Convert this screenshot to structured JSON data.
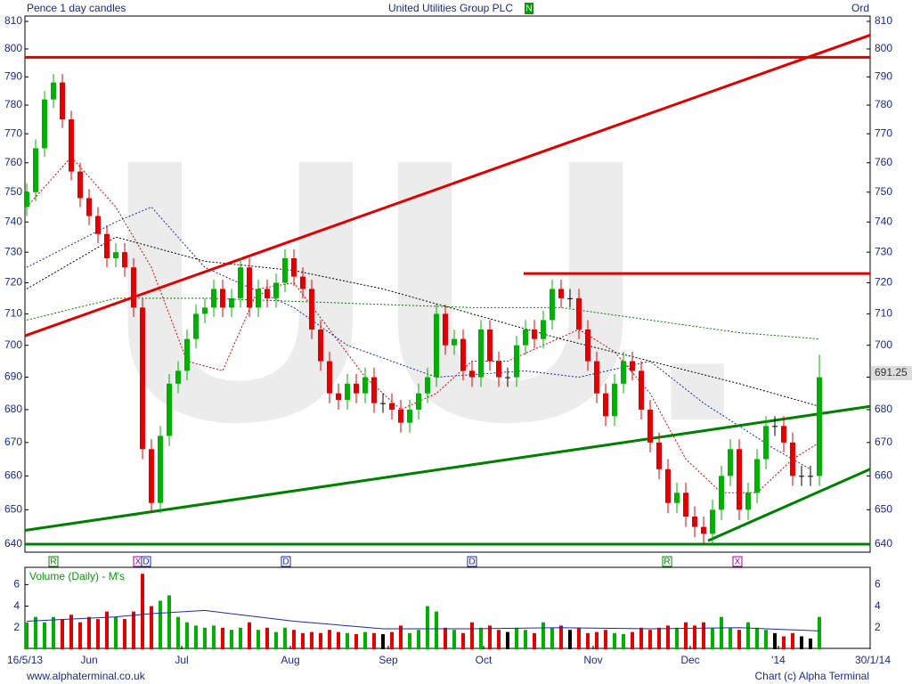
{
  "chart_data": {
    "type": "candlestick",
    "title": "United Utilities Group PLC",
    "subtitle": "Pence 1 day candles",
    "share_class": "Ord",
    "exchange_badge": "N",
    "watermark": "UU.",
    "footer_left": "www.alphaterminal.co.uk",
    "footer_right": "Chart (c) Alpha Terminal",
    "log_scale": true,
    "up_color": "#00b000",
    "down_color": "#e00000",
    "open": [
      745,
      750,
      765,
      782,
      788,
      775,
      757,
      748,
      742,
      736,
      728,
      730,
      725,
      712,
      668,
      652,
      672,
      688,
      692,
      702,
      710,
      712,
      718,
      712,
      715,
      725,
      712,
      718,
      715,
      720,
      728,
      722,
      718,
      705,
      695,
      685,
      683,
      688,
      685,
      690,
      682,
      682,
      680,
      676,
      680,
      685,
      690,
      710,
      700,
      702,
      692,
      690,
      705,
      695,
      690,
      690,
      700,
      705,
      702,
      708,
      718,
      715,
      715,
      705,
      695,
      685,
      678,
      688,
      695,
      692,
      680,
      670,
      662,
      652,
      655,
      648,
      645,
      643,
      650,
      660,
      668,
      650,
      655,
      665,
      675,
      675,
      670,
      660,
      660,
      660
    ],
    "high": [
      753,
      768,
      785,
      791,
      791,
      778,
      760,
      751,
      745,
      739,
      733,
      733,
      728,
      715,
      671,
      675,
      691,
      695,
      705,
      713,
      715,
      721,
      721,
      718,
      728,
      728,
      721,
      721,
      723,
      731,
      731,
      725,
      721,
      708,
      698,
      688,
      691,
      691,
      693,
      693,
      685,
      685,
      683,
      683,
      688,
      693,
      713,
      713,
      705,
      705,
      695,
      708,
      708,
      698,
      693,
      703,
      708,
      708,
      711,
      721,
      721,
      718,
      718,
      708,
      698,
      688,
      691,
      698,
      698,
      695,
      683,
      673,
      665,
      658,
      658,
      651,
      648,
      653,
      663,
      671,
      671,
      658,
      668,
      678,
      678,
      678,
      673,
      663,
      663,
      697
    ],
    "low": [
      742,
      747,
      762,
      779,
      772,
      754,
      745,
      739,
      733,
      725,
      725,
      722,
      709,
      665,
      649,
      649,
      669,
      685,
      689,
      699,
      707,
      709,
      709,
      709,
      712,
      709,
      709,
      712,
      712,
      717,
      719,
      715,
      702,
      692,
      682,
      680,
      680,
      682,
      682,
      679,
      679,
      677,
      673,
      673,
      677,
      682,
      687,
      697,
      697,
      689,
      687,
      687,
      692,
      687,
      687,
      687,
      697,
      699,
      699,
      705,
      712,
      712,
      702,
      692,
      682,
      675,
      675,
      685,
      689,
      677,
      667,
      659,
      649,
      649,
      645,
      642,
      640,
      640,
      647,
      657,
      647,
      647,
      652,
      662,
      672,
      667,
      657,
      657,
      657,
      657
    ],
    "close": [
      750,
      765,
      782,
      788,
      775,
      757,
      748,
      742,
      736,
      728,
      730,
      725,
      712,
      668,
      652,
      672,
      688,
      692,
      702,
      710,
      712,
      718,
      712,
      715,
      725,
      712,
      718,
      715,
      720,
      728,
      722,
      718,
      705,
      695,
      685,
      683,
      688,
      685,
      690,
      682,
      682,
      680,
      676,
      680,
      685,
      690,
      710,
      700,
      702,
      692,
      690,
      705,
      695,
      690,
      690,
      700,
      705,
      702,
      708,
      718,
      715,
      715,
      705,
      695,
      685,
      678,
      688,
      695,
      692,
      680,
      670,
      662,
      652,
      655,
      648,
      645,
      643,
      650,
      660,
      668,
      650,
      655,
      665,
      675,
      675,
      670,
      660,
      660,
      660,
      690
    ],
    "volume_label": "Volume (Daily) - M's",
    "volume": [
      2.5,
      3,
      2.5,
      3,
      2.8,
      3.2,
      2.5,
      3,
      2.8,
      3.5,
      3,
      2.8,
      3.5,
      7,
      4,
      4.5,
      5,
      3,
      2.5,
      2.2,
      2,
      2.2,
      2,
      1.8,
      2,
      2.5,
      1.8,
      2,
      1.6,
      2,
      1.8,
      1.5,
      1.6,
      1.5,
      1.8,
      1.6,
      1.5,
      1.4,
      1.6,
      1.5,
      1.4,
      1.6,
      2.2,
      1.5,
      1.8,
      4,
      3.5,
      2,
      1.8,
      1.5,
      2.5,
      2,
      2.2,
      1.8,
      1.6,
      2,
      1.8,
      1.5,
      2.5,
      2,
      2.2,
      1.8,
      2,
      1.5,
      1.6,
      1.8,
      1.5,
      1.4,
      1.6,
      2,
      1.8,
      2,
      2.2,
      2,
      2.5,
      2.2,
      2.5,
      2,
      3,
      2,
      1.8,
      2.5,
      2,
      1.8,
      1.5,
      1.2,
      1.5,
      1.2,
      1,
      3
    ],
    "volume_ma": {
      "color": "#1a2aaa",
      "x": [
        0,
        10,
        14,
        20,
        30,
        40,
        50,
        60,
        70,
        80,
        89
      ],
      "values": [
        2.6,
        3,
        3.3,
        3.6,
        2.6,
        1.9,
        1.9,
        2,
        1.9,
        2,
        1.7
      ]
    },
    "xlim": [
      -0.2,
      94.7
    ],
    "xticks": [
      {
        "value": -0.2,
        "label": "16/5/13"
      },
      {
        "value": 7,
        "label": "Jun"
      },
      {
        "value": 17.4,
        "label": "Jul"
      },
      {
        "value": 29.6,
        "label": "Aug"
      },
      {
        "value": 40.6,
        "label": "Sep"
      },
      {
        "value": 51.3,
        "label": "Oct"
      },
      {
        "value": 63.6,
        "label": "Nov"
      },
      {
        "value": 74.5,
        "label": "Dec"
      },
      {
        "value": 84.4,
        "label": "'14"
      },
      {
        "value": 94.7,
        "label": "30/1/14"
      }
    ],
    "ylim": [
      640,
      810
    ],
    "yticks": [
      640,
      650,
      660,
      670,
      680,
      690,
      700,
      710,
      720,
      730,
      740,
      750,
      760,
      770,
      780,
      790,
      800,
      810
    ],
    "vol_ylim": [
      0,
      7.6
    ],
    "vol_yticks": [
      2,
      4,
      6
    ],
    "last_price": 691.25,
    "moving_averages": [
      {
        "color": "#e00000",
        "x": [
          0,
          5,
          10,
          14,
          18,
          22,
          26,
          30,
          34,
          38,
          42,
          46,
          50,
          54,
          58,
          62,
          66,
          70,
          74,
          78,
          82,
          86,
          89
        ],
        "values": [
          745,
          762,
          745,
          725,
          695,
          692,
          718,
          720,
          705,
          690,
          680,
          685,
          695,
          695,
          700,
          705,
          698,
          685,
          665,
          655,
          655,
          665,
          670
        ]
      },
      {
        "color": "#1a2aaa",
        "x": [
          0,
          10,
          14,
          20,
          30,
          36,
          46,
          56,
          62,
          70,
          76,
          84,
          88
        ],
        "values": [
          725,
          740,
          745,
          725,
          712,
          700,
          690,
          692,
          690,
          695,
          682,
          668,
          662
        ]
      },
      {
        "color": "#000000",
        "x": [
          0,
          10,
          20,
          30,
          40,
          50,
          60,
          70,
          80,
          89
        ],
        "values": [
          718,
          735,
          727,
          724,
          718,
          710,
          702,
          695,
          688,
          681
        ]
      },
      {
        "color": "#008000",
        "x": [
          0,
          10,
          20,
          30,
          40,
          50,
          60,
          70,
          80,
          89
        ],
        "values": [
          708,
          715,
          715,
          714,
          713,
          712,
          712,
          708,
          704,
          702
        ]
      }
    ],
    "trend_lines": [
      {
        "color": "#e00000",
        "x": [
          -0.2,
          94.7
        ],
        "values": [
          797,
          797
        ]
      },
      {
        "color": "#e00000",
        "x": [
          55.8,
          94.7
        ],
        "values": [
          723,
          723
        ]
      },
      {
        "color": "#e00000",
        "x": [
          -0.2,
          94.7
        ],
        "values": [
          703,
          805
        ]
      },
      {
        "color": "#008000",
        "x": [
          -0.2,
          94.7
        ],
        "values": [
          640,
          640
        ]
      },
      {
        "color": "#008000",
        "x": [
          -0.2,
          94.7
        ],
        "values": [
          644,
          681
        ]
      },
      {
        "color": "#008000",
        "x": [
          76.5,
          94.7
        ],
        "values": [
          641,
          662
        ]
      }
    ],
    "events": [
      {
        "label": "R",
        "x": 3,
        "color": "#008000"
      },
      {
        "label": "X",
        "x": 12.5,
        "color": "#a000a0"
      },
      {
        "label": "D",
        "x": 13.4,
        "color": "#1a2aaa"
      },
      {
        "label": "D",
        "x": 29.1,
        "color": "#1a2aaa"
      },
      {
        "label": "D",
        "x": 50,
        "color": "#1a2aaa"
      },
      {
        "label": "R",
        "x": 71.9,
        "color": "#008000"
      },
      {
        "label": "X",
        "x": 79.8,
        "color": "#a000a0"
      }
    ]
  }
}
